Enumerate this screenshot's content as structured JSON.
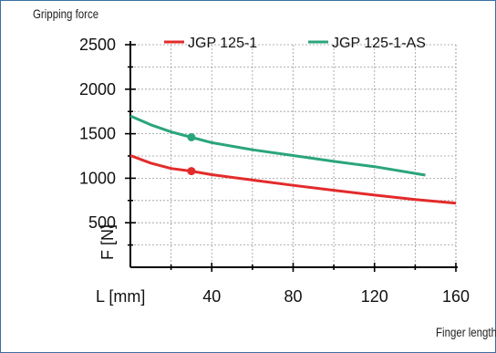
{
  "header": {
    "title": "Gripping force"
  },
  "footer": {
    "label": "Finger length"
  },
  "colors": {
    "series_1": "#e32b2b",
    "series_2": "#2aa57a",
    "frame": "#3b6fa1",
    "grid": "#9a9a9a"
  },
  "chart_data": {
    "type": "line",
    "title": "Gripping force",
    "xlabel": "L [mm]",
    "ylabel": "F [N]",
    "xlim": [
      0,
      160
    ],
    "ylim": [
      0,
      2500
    ],
    "x_ticks": [
      40,
      80,
      120,
      160
    ],
    "y_ticks": [
      500,
      1000,
      1500,
      2000,
      2500
    ],
    "grid": true,
    "legend_position": "top",
    "series": [
      {
        "name": "JGP 125-1",
        "x": [
          0,
          10,
          20,
          30,
          40,
          60,
          80,
          100,
          120,
          140,
          160
        ],
        "values": [
          1255,
          1170,
          1110,
          1080,
          1040,
          980,
          920,
          865,
          810,
          760,
          720
        ],
        "marker": {
          "x": 30,
          "y": 1080
        }
      },
      {
        "name": "JGP 125-1-AS",
        "x": [
          0,
          10,
          20,
          30,
          40,
          60,
          80,
          100,
          120,
          145
        ],
        "values": [
          1700,
          1600,
          1520,
          1460,
          1400,
          1320,
          1255,
          1190,
          1130,
          1035
        ],
        "marker": {
          "x": 30,
          "y": 1460
        }
      }
    ]
  }
}
